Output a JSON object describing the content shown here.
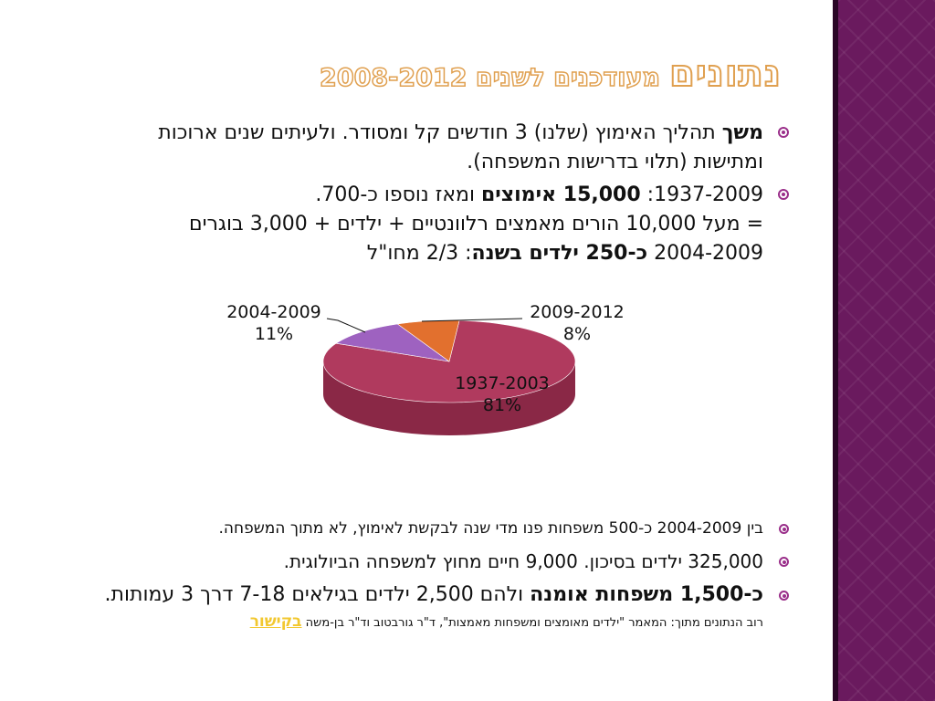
{
  "title": {
    "main": "נתונים",
    "sub": "מעודכנים לשנים 2008-2012"
  },
  "bullets_top": [
    {
      "b1": "משך",
      "t1": " תהליך האימוץ (שלנו) 3 חודשים קל ומסודר. ולעיתים שנים ארוכות ומתישות (תלוי בדרישות המשפחה)."
    },
    {
      "t1": "1937-2009:  ",
      "b1": "15,000 אימוצים",
      "t2": " ומאז נוספו כ-700.",
      "t3": "= מעל 10,000 הורים מאמצים רלוונטיים + ילדים + 3,000 בוגרים",
      "t4": "2004-2009 ",
      "b2": "כ-250 ילדים בשנה",
      "t5": ": 2/3 מחו\"ל"
    }
  ],
  "chart_data": {
    "type": "pie",
    "categories": [
      "1937-2003",
      "2004-2009",
      "2009-2012"
    ],
    "values": [
      81,
      11,
      8
    ],
    "value_labels": [
      "81%",
      "11%",
      "8%"
    ],
    "colors": [
      "#b03a5e",
      "#9e62c0",
      "#e2702e"
    ],
    "side_colors": [
      "#8a2846",
      "#7a3f9a",
      "#b05424"
    ],
    "style": "3d",
    "legend": "none"
  },
  "bullets_bottom": [
    {
      "text": "בין 2004-2009 כ-500 משפחות פנו מדי שנה לבקשת לאימוץ, לא מתוך המשפחה."
    },
    {
      "text": "325,000 ילדים בסיכון. 9,000 חיים מחוץ למשפחה הביולוגית."
    },
    {
      "b1": "כ-1,500 משפחות אומנה",
      "t1": " ולהם 2,500 ילדים בגילאים 7-18 דרך 3 עמותות."
    }
  ],
  "source": {
    "text": "רוב הנתונים מתוך: המאמר \"ילדים מאומצים ומשפחות מאמצות\", ד\"ר גורבטוב וד\"ר בן-משה ",
    "link": "בקישור"
  },
  "colors": {
    "side_band": "#6a1a5e",
    "bullet": "#9a2f8a",
    "title_outline": "#e0a050",
    "link": "#f2c830"
  }
}
